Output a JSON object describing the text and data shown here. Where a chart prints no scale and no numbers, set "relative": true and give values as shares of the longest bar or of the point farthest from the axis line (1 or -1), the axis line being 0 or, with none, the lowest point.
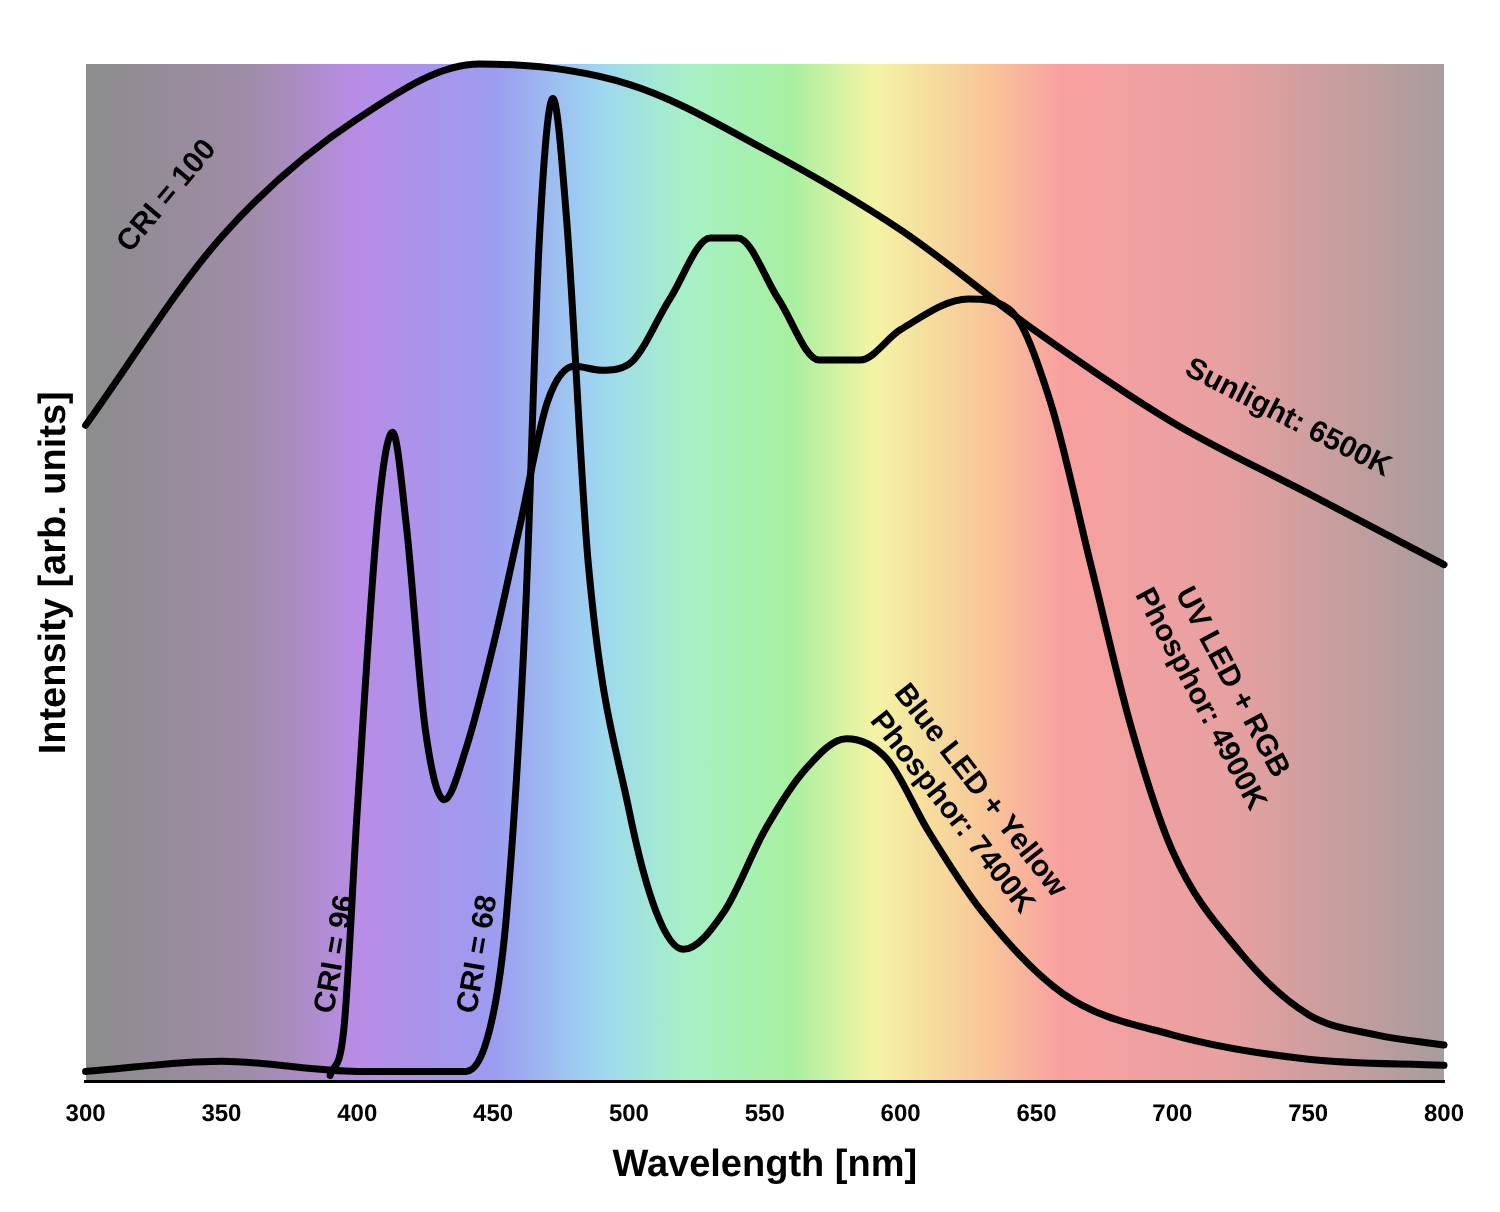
{
  "chart_data": {
    "type": "line",
    "relative": true,
    "xlabel": "Wavelength [nm]",
    "ylabel": "Intensity [arb. units]",
    "xlim": [
      300,
      800
    ],
    "xticks": [
      300,
      350,
      400,
      450,
      500,
      550,
      600,
      650,
      700,
      750,
      800
    ],
    "tick_labels": "x",
    "grid": false,
    "legend": false,
    "marker": "none",
    "line_style": "solid",
    "series": [
      {
        "name": "Sunlight: 6500K",
        "color": "#000000",
        "x": [
          300,
          350,
          400,
          445,
          500,
          550,
          600,
          650,
          700,
          750,
          800
        ],
        "values": [
          0.645,
          0.83,
          0.946,
          1.0,
          0.98,
          0.916,
          0.837,
          0.737,
          0.648,
          0.578,
          0.508
        ]
      },
      {
        "name": "UV LED + RGB Phosphor: 4900K",
        "color": "#000000",
        "x": [
          390,
          395,
          400,
          408,
          413,
          418,
          425,
          432,
          440,
          450,
          460,
          470,
          480,
          490,
          500,
          515,
          530,
          540,
          555,
          570,
          585,
          600,
          625,
          640,
          655,
          670,
          685,
          700,
          725,
          750,
          775,
          800
        ],
        "values": [
          0.006,
          0.05,
          0.267,
          0.568,
          0.638,
          0.548,
          0.347,
          0.277,
          0.327,
          0.428,
          0.548,
          0.668,
          0.703,
          0.699,
          0.705,
          0.769,
          0.829,
          0.829,
          0.769,
          0.709,
          0.709,
          0.739,
          0.769,
          0.759,
          0.669,
          0.508,
          0.347,
          0.227,
          0.127,
          0.066,
          0.046,
          0.036
        ]
      },
      {
        "name": "Blue LED + Yellow Phosphor: 7400K",
        "color": "#000000",
        "x": [
          300,
          350,
          400,
          440,
          450,
          455,
          462,
          467,
          472,
          477,
          485,
          500,
          510,
          520,
          535,
          550,
          565,
          580,
          595,
          610,
          630,
          660,
          700,
          750,
          800
        ],
        "values": [
          0.01,
          0.02,
          0.01,
          0.01,
          0.066,
          0.166,
          0.466,
          0.827,
          0.966,
          0.849,
          0.51,
          0.267,
          0.167,
          0.13,
          0.167,
          0.247,
          0.307,
          0.337,
          0.317,
          0.247,
          0.167,
          0.086,
          0.046,
          0.022,
          0.016
        ]
      }
    ],
    "annotations": [
      "CRI = 100",
      "CRI = 96",
      "CRI = 68"
    ]
  }
}
